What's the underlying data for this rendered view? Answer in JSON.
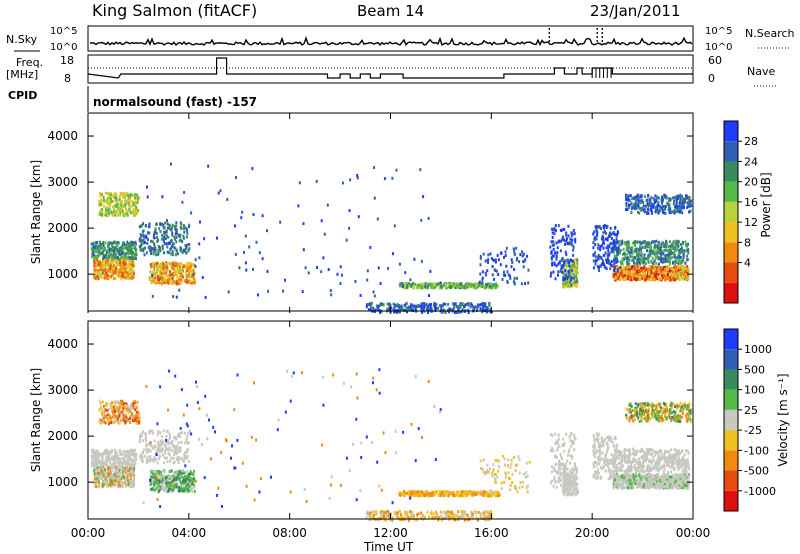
{
  "header": {
    "station": "King Salmon (fitACF)",
    "beam": "Beam 14",
    "date": "23/Jan/2011"
  },
  "strips": {
    "nsky_label": "N.Sky",
    "nsearch_label": "N.Search",
    "noise_ticks": [
      "10^5",
      "10^0"
    ],
    "freq_label": "Freq.",
    "freq_unit": "[MHz]",
    "freq_ticks": [
      "18",
      "8"
    ],
    "nave_label": "Nave",
    "nave_ticks": [
      "60",
      "0"
    ],
    "cpid_label": "CPID",
    "cpid_value": "normalsound (fast) -157"
  },
  "colors": {
    "power": [
      "#1e3cff",
      "#2f5fb3",
      "#3a8a5e",
      "#56b84b",
      "#b8d13d",
      "#f0c020",
      "#f08a10",
      "#e84a10",
      "#e01010"
    ],
    "velocity": [
      "#1e3cff",
      "#2f5fb3",
      "#3a8a5e",
      "#56b84b",
      "#c8c8c0",
      "#f0c020",
      "#f08a10",
      "#e84a10",
      "#e01010"
    ]
  },
  "chart_data": [
    {
      "type": "heatmap",
      "name": "power-panel",
      "ylabel": "Slant Range [km]",
      "yticks": [
        "4000",
        "3000",
        "2000",
        "1000"
      ],
      "ylim": [
        200,
        4500
      ],
      "xlim": [
        0,
        24
      ],
      "colorbar_label": "Power [dB]",
      "colorbar_ticks": [
        "28",
        "24",
        "20",
        "16",
        "12",
        "8",
        "4"
      ]
    },
    {
      "type": "heatmap",
      "name": "velocity-panel",
      "ylabel": "Slant Range [km]",
      "yticks": [
        "4000",
        "3000",
        "2000",
        "1000"
      ],
      "ylim": [
        200,
        4500
      ],
      "xlim": [
        0,
        24
      ],
      "xticks": [
        "00:00",
        "04:00",
        "08:00",
        "12:00",
        "16:00",
        "20:00",
        "00:00"
      ],
      "xlabel": "Time UT",
      "colorbar_label": "Velocity [m s⁻¹]",
      "colorbar_ticks": [
        "1000",
        "500",
        "100",
        "25",
        "-25",
        "-100",
        "-500",
        "-1000"
      ]
    }
  ]
}
